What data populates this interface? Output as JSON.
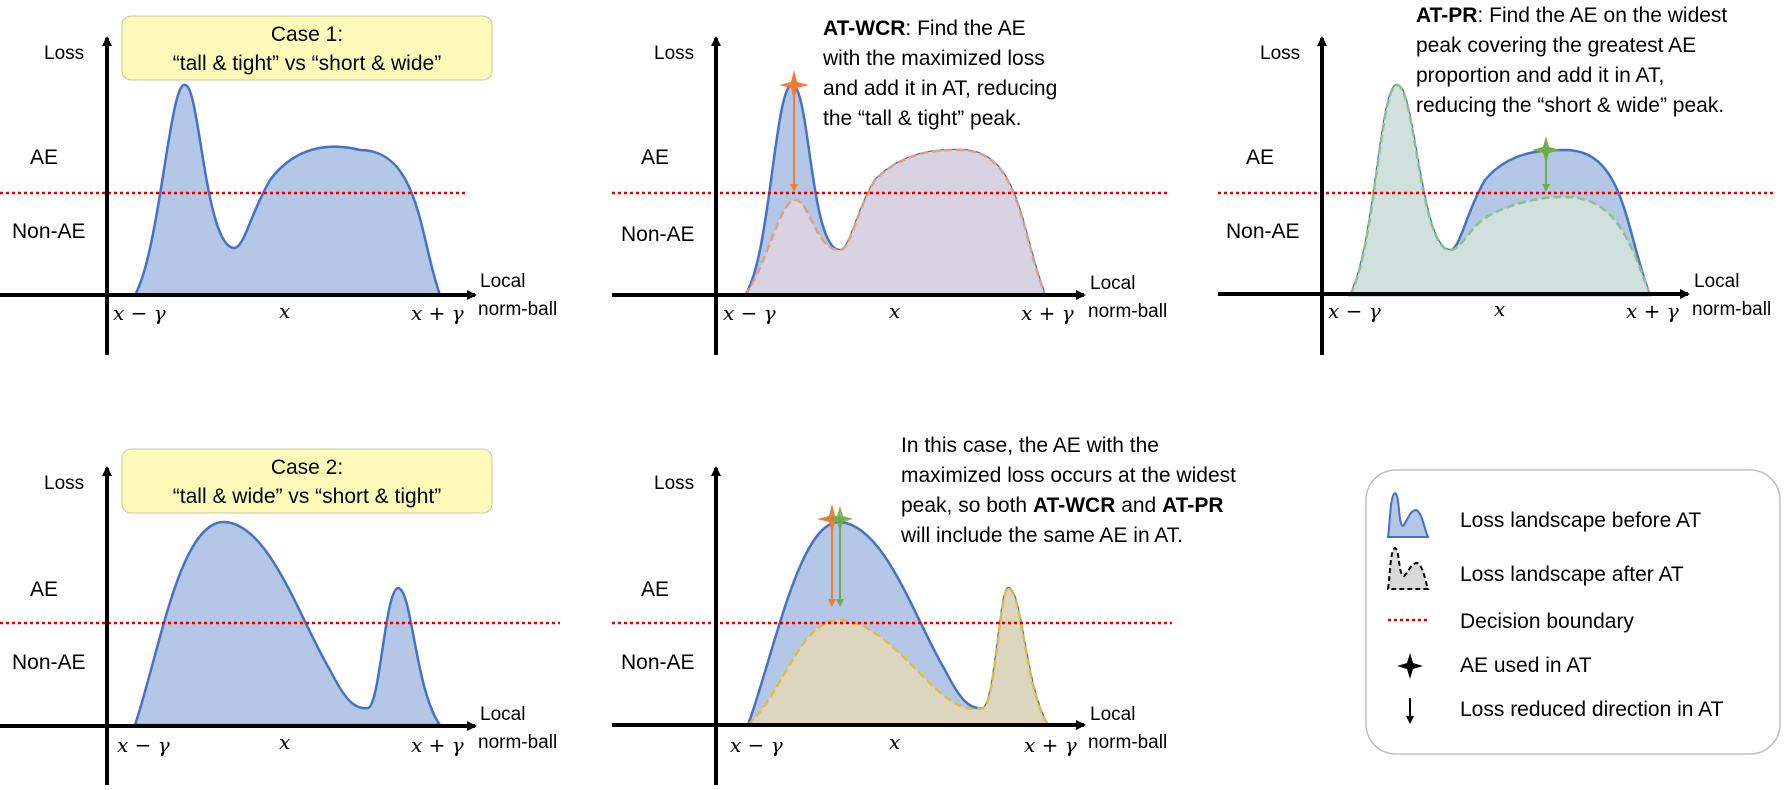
{
  "colors": {
    "before_fill": "#b4c7e7",
    "before_line": "#4472c4",
    "after_wcr_fill": "#d9d2e0",
    "after_wcr_line": "#e0a080",
    "after_pr_fill": "#cfe0dd",
    "after_pr_line": "#8fc08a",
    "after_both_fill": "#ddd6be",
    "after_both_line": "#e0bb44",
    "boundary": "#e00000",
    "wcr_marker": "#f07b33",
    "pr_marker": "#70ad47",
    "case_box": "#fdfaba"
  },
  "axis": {
    "loss": "Loss",
    "ae": "AE",
    "non_ae": "Non-AE",
    "local_line1": "Local",
    "local_line2": "norm-ball",
    "x_minus": "x − γ",
    "x_center": "x",
    "x_plus": "x + γ"
  },
  "case1": {
    "line1": "Case 1:",
    "line2": "“tall & tight” vs “short & wide”"
  },
  "case2": {
    "line1": "Case 2:",
    "line2": "“tall & wide” vs “short & tight”"
  },
  "wcr_desc": {
    "bold": "AT-WCR",
    "line1_rest": ": Find the AE",
    "line2": "with the maximized loss",
    "line3": "and add it in AT, reducing",
    "line4": "the “tall & tight” peak."
  },
  "pr_desc": {
    "bold": "AT-PR",
    "line1_rest": ": Find the AE on the widest",
    "line2": "peak covering the greatest AE",
    "line3": "proportion and add it in AT,",
    "line4": "reducing the “short & wide” peak."
  },
  "case2_desc": {
    "line1": "In this case, the AE with the",
    "line2": "maximized loss occurs at the widest",
    "line3_pre": "peak, so both ",
    "line3_b1": "AT-WCR",
    "line3_mid": " and ",
    "line3_b2": "AT-PR",
    "line4": "will include the same AE in AT."
  },
  "legend": {
    "before": "Loss landscape before AT",
    "after": "Loss landscape after AT",
    "boundary": "Decision boundary",
    "ae_used": "AE used in AT",
    "reduced": "Loss reduced direction in AT"
  }
}
